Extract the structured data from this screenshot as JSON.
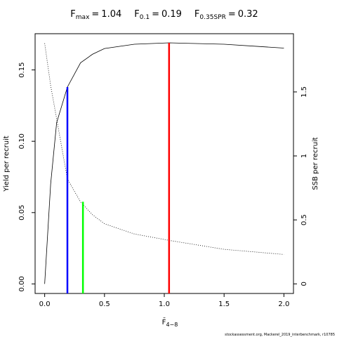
{
  "chart_data": {
    "type": "line",
    "reference_lines": [
      {
        "label": "F",
        "sub": "max",
        "eq": "=",
        "x": 1.04,
        "color": "#ff0000",
        "top": 0.169
      },
      {
        "label": "F",
        "sub": "0.1",
        "eq": "=",
        "x": 0.19,
        "color": "#0000ff",
        "top": 0.138
      },
      {
        "label": "F",
        "sub": "0.35SPR",
        "eq": "=",
        "x": 0.32,
        "color": "#00ff00",
        "top": 0.0576
      }
    ],
    "x": [
      0,
      0.05,
      0.1,
      0.19,
      0.3,
      0.4,
      0.5,
      0.75,
      1.04,
      1.5,
      2.0
    ],
    "series": [
      {
        "name": "Yield per recruit",
        "color": "#000000",
        "style": "solid",
        "values": [
          0,
          0.07,
          0.113,
          0.138,
          0.155,
          0.161,
          0.165,
          0.168,
          0.169,
          0.168,
          0.1653
        ]
      },
      {
        "name": "SSB per recruit",
        "color": "#000000",
        "style": "dotted",
        "axis": "y2",
        "values": [
          1.88,
          1.55,
          1.29,
          0.82,
          0.64,
          0.54,
          0.47,
          0.39,
          0.34,
          0.27,
          0.23
        ]
      }
    ],
    "xlabel": "F̄",
    "xlabel_sub": "4−8",
    "ylabel": "Yield per recruit",
    "y2label": "SSB per recruit",
    "xlim": [
      -0.08,
      2.08
    ],
    "xticks": [
      {
        "value": 0,
        "label": "0.0"
      },
      0.5,
      {
        "value": 1,
        "label": "1.0"
      },
      1.5,
      {
        "value": 2,
        "label": "2.0"
      }
    ],
    "ylim": [
      -0.0067,
      0.1754
    ],
    "yticks": [
      {
        "value": 0,
        "label": "0.00"
      },
      0.05,
      {
        "value": 0.1,
        "label": "0.10"
      },
      0.15
    ],
    "y2lim": [
      -0.075,
      1.955
    ],
    "y2ticks": [
      0,
      0.5,
      1,
      1.5
    ],
    "footer": "stockassessment.org, Mackerel_2019_interbenchmark, r10785"
  }
}
